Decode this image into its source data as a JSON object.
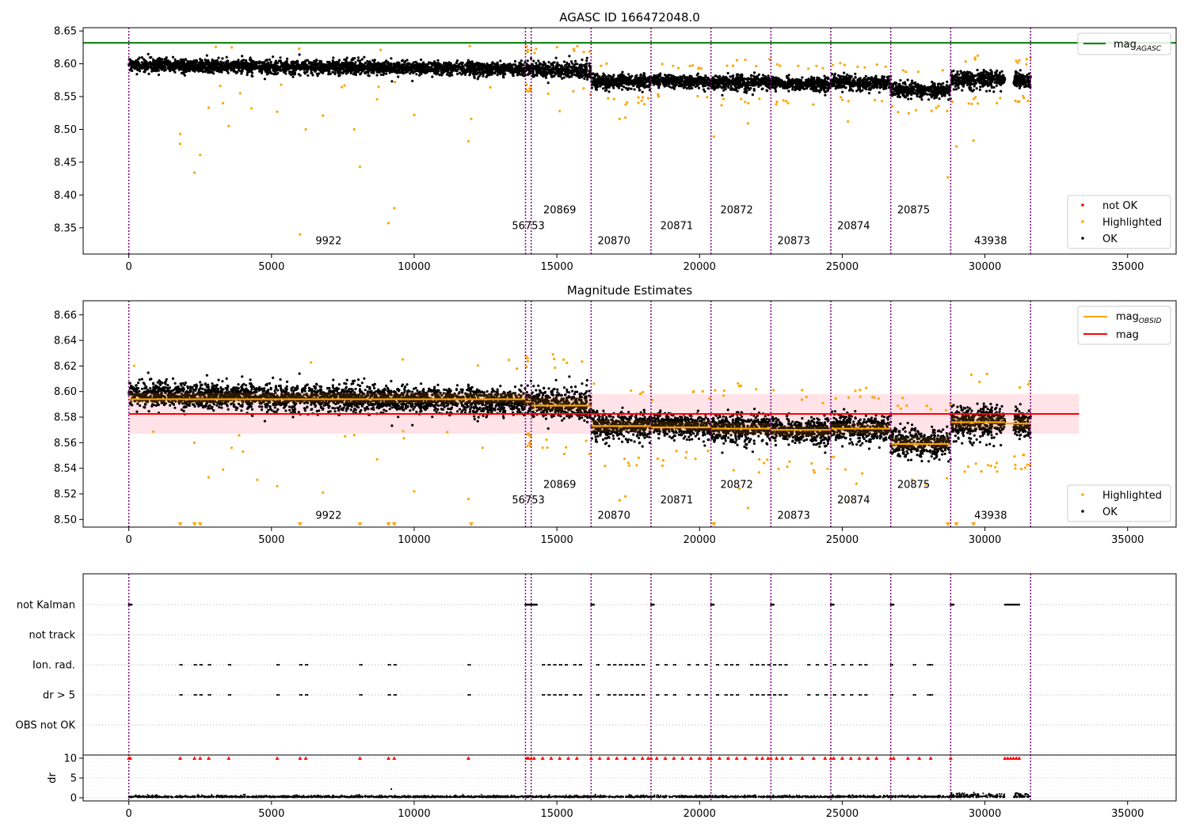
{
  "colors": {
    "ok": "#000000",
    "highlighted": "#ffa500",
    "not_ok": "#ff0000",
    "mag_agasc": "#008000",
    "mag": "#ff0000",
    "mag_obsid": "#ffa500",
    "obs_boundary": "#800080",
    "band": "#ffc0cb"
  },
  "chart_data": [
    {
      "type": "scatter",
      "title": "AGASC ID 166472048.0",
      "xlim": [
        -1600,
        36700
      ],
      "ylim": [
        8.31,
        8.655
      ],
      "xticks": [
        0,
        5000,
        10000,
        15000,
        20000,
        25000,
        30000,
        35000
      ],
      "xtick_labels": [
        "0",
        "5000",
        "10000",
        "15000",
        "20000",
        "25000",
        "30000",
        "35000"
      ],
      "yticks": [
        8.35,
        8.4,
        8.45,
        8.5,
        8.55,
        8.6,
        8.65
      ],
      "ytick_labels": [
        "8.35",
        "8.40",
        "8.45",
        "8.50",
        "8.55",
        "8.60",
        "8.65"
      ],
      "mag_agasc": 8.632,
      "legend_top": {
        "placement": "top-right",
        "entries": [
          {
            "label": "mag",
            "sub": "AGASC",
            "color": "#008000"
          }
        ]
      },
      "legend_bottom": {
        "placement": "lower-right",
        "entries": [
          {
            "label": "not OK",
            "color": "#ff0000"
          },
          {
            "label": "Highlighted",
            "color": "#ffa500"
          },
          {
            "label": "OK",
            "color": "#000000"
          }
        ]
      },
      "obs_labels": [
        {
          "text": "9922",
          "x": 7000,
          "y": 8.325
        },
        {
          "text": "56753",
          "x": 14000,
          "y": 8.348
        },
        {
          "text": "20869",
          "x": 15100,
          "y": 8.372
        },
        {
          "text": "20870",
          "x": 17000,
          "y": 8.325
        },
        {
          "text": "20871",
          "x": 19200,
          "y": 8.348
        },
        {
          "text": "20872",
          "x": 21300,
          "y": 8.372
        },
        {
          "text": "20873",
          "x": 23300,
          "y": 8.325
        },
        {
          "text": "20874",
          "x": 25400,
          "y": 8.348
        },
        {
          "text": "20875",
          "x": 27500,
          "y": 8.372
        },
        {
          "text": "43938",
          "x": 30200,
          "y": 8.325
        }
      ],
      "highlighted_points": [
        [
          1800,
          8.493
        ],
        [
          1800,
          8.478
        ],
        [
          2300,
          8.434
        ],
        [
          2500,
          8.461
        ],
        [
          2800,
          8.533
        ],
        [
          3300,
          8.54
        ],
        [
          3500,
          8.505
        ],
        [
          3900,
          8.555
        ],
        [
          4300,
          8.532
        ],
        [
          5200,
          8.527
        ],
        [
          6000,
          8.34
        ],
        [
          6200,
          8.5
        ],
        [
          6800,
          8.521
        ],
        [
          7900,
          8.5
        ],
        [
          8100,
          8.443
        ],
        [
          8700,
          8.546
        ],
        [
          9100,
          8.357
        ],
        [
          9300,
          8.38
        ],
        [
          10000,
          8.522
        ],
        [
          11900,
          8.482
        ],
        [
          12000,
          8.516
        ],
        [
          15100,
          8.528
        ],
        [
          17200,
          8.516
        ],
        [
          17400,
          8.518
        ],
        [
          20500,
          8.489
        ],
        [
          21700,
          8.509
        ],
        [
          25200,
          8.512
        ],
        [
          28700,
          8.427
        ],
        [
          29000,
          8.474
        ],
        [
          29600,
          8.483
        ]
      ]
    },
    {
      "type": "scatter",
      "title": "Magnitude Estimates",
      "xlim": [
        -1600,
        36700
      ],
      "ylim": [
        8.494,
        8.671
      ],
      "xticks": [
        0,
        5000,
        10000,
        15000,
        20000,
        25000,
        30000,
        35000
      ],
      "xtick_labels": [
        "0",
        "5000",
        "10000",
        "15000",
        "20000",
        "25000",
        "30000",
        "35000"
      ],
      "yticks": [
        8.5,
        8.52,
        8.54,
        8.56,
        8.58,
        8.6,
        8.62,
        8.64,
        8.66
      ],
      "ytick_labels": [
        "8.50",
        "8.52",
        "8.54",
        "8.56",
        "8.58",
        "8.60",
        "8.62",
        "8.64",
        "8.66"
      ],
      "mag": 8.5825,
      "mag_band": [
        8.567,
        8.598
      ],
      "mag_band_x": [
        0,
        33300
      ],
      "mag_obsid_segments": [
        {
          "x": [
            0,
            13900
          ],
          "y": 8.594
        },
        {
          "x": [
            13900,
            14100
          ],
          "y": 8.592
        },
        {
          "x": [
            14100,
            16200
          ],
          "y": 8.589
        },
        {
          "x": [
            16200,
            18300
          ],
          "y": 8.573
        },
        {
          "x": [
            18300,
            20400
          ],
          "y": 8.572
        },
        {
          "x": [
            20400,
            22500
          ],
          "y": 8.571
        },
        {
          "x": [
            22500,
            24600
          ],
          "y": 8.57
        },
        {
          "x": [
            24600,
            26700
          ],
          "y": 8.571
        },
        {
          "x": [
            26700,
            28800
          ],
          "y": 8.559
        },
        {
          "x": [
            28800,
            30700
          ],
          "y": 8.576
        },
        {
          "x": [
            30700,
            31600
          ],
          "y": 8.575
        }
      ],
      "legend_top": {
        "placement": "top-right",
        "entries": [
          {
            "label": "mag",
            "sub": "OBSID",
            "color": "#ffa500"
          },
          {
            "label": "mag",
            "sub": "",
            "color": "#ff0000"
          }
        ]
      },
      "legend_bottom": {
        "placement": "lower-right",
        "entries": [
          {
            "label": "Highlighted",
            "color": "#ffa500"
          },
          {
            "label": "OK",
            "color": "#000000"
          }
        ]
      },
      "obs_labels": [
        {
          "text": "9922",
          "x": 7000,
          "y": 8.5005
        },
        {
          "text": "56753",
          "x": 14000,
          "y": 8.5125
        },
        {
          "text": "20869",
          "x": 15100,
          "y": 8.5245
        },
        {
          "text": "20870",
          "x": 17000,
          "y": 8.5005
        },
        {
          "text": "20871",
          "x": 19200,
          "y": 8.5125
        },
        {
          "text": "20872",
          "x": 21300,
          "y": 8.5245
        },
        {
          "text": "20873",
          "x": 23300,
          "y": 8.5005
        },
        {
          "text": "20874",
          "x": 25400,
          "y": 8.5125
        },
        {
          "text": "20875",
          "x": 27500,
          "y": 8.5245
        },
        {
          "text": "43938",
          "x": 30200,
          "y": 8.5005
        }
      ],
      "highlighted_points": [
        [
          2300,
          8.56
        ],
        [
          2800,
          8.533
        ],
        [
          3300,
          8.539
        ],
        [
          3600,
          8.556
        ],
        [
          4000,
          8.553
        ],
        [
          4500,
          8.531
        ],
        [
          5200,
          8.526
        ],
        [
          6800,
          8.521
        ],
        [
          7900,
          8.566
        ],
        [
          8700,
          8.547
        ],
        [
          10000,
          8.522
        ],
        [
          11900,
          8.516
        ],
        [
          12400,
          8.556
        ],
        [
          14500,
          8.556
        ],
        [
          17200,
          8.515
        ],
        [
          17400,
          8.518
        ],
        [
          18700,
          8.542
        ],
        [
          21700,
          8.509
        ],
        [
          21400,
          8.524
        ],
        [
          25200,
          8.514
        ],
        [
          25500,
          8.528
        ],
        [
          25700,
          8.536
        ]
      ],
      "clipped_x": [
        1800,
        2300,
        2500,
        6000,
        8100,
        9100,
        9300,
        12000,
        20500,
        28700,
        29000,
        29600
      ]
    },
    {
      "type": "scatter",
      "flags": [
        "not Kalman",
        "not track",
        "Ion. rad.",
        "dr > 5",
        "OBS not OK"
      ],
      "dr_ylabel": "dr",
      "dr_yticks": [
        0,
        5,
        10
      ],
      "dr_ytick_labels": [
        "0",
        "5",
        "10"
      ],
      "dr_ylim": [
        -0.8,
        10.8
      ],
      "xlim": [
        -1600,
        36700
      ],
      "xticks": [
        0,
        5000,
        10000,
        15000,
        20000,
        25000,
        30000,
        35000
      ],
      "xtick_labels": [
        "0",
        "5000",
        "10000",
        "15000",
        "20000",
        "25000",
        "30000",
        "35000"
      ],
      "not_kalman_ranges": [
        [
          0,
          100
        ],
        [
          13900,
          14300
        ],
        [
          16200,
          16300
        ],
        [
          18300,
          18400
        ],
        [
          20400,
          20500
        ],
        [
          22500,
          22600
        ],
        [
          24600,
          24700
        ],
        [
          26700,
          26800
        ],
        [
          28800,
          28900
        ],
        [
          30700,
          31200
        ]
      ],
      "not_track_x": [
        26700
      ],
      "ion_rad_x": [
        1800,
        2300,
        2500,
        2800,
        3500,
        5200,
        6000,
        6200,
        8100,
        9100,
        9300,
        11900,
        14500,
        14700,
        14900,
        15100,
        15300,
        15600,
        15800,
        16400,
        16800,
        17000,
        17200,
        17400,
        17600,
        17800,
        18000,
        18500,
        18800,
        19100,
        19600,
        19900,
        20200,
        20600,
        20900,
        21100,
        21300,
        21800,
        22000,
        22200,
        22400,
        22600,
        22800,
        23000,
        23800,
        24100,
        24400,
        24700,
        25000,
        25300,
        25600,
        25800,
        26700,
        27500,
        28000,
        28100
      ],
      "dr5_x": [
        1800,
        2300,
        2500,
        2800,
        3500,
        5200,
        6000,
        6200,
        8100,
        9100,
        9300,
        11900,
        14500,
        14700,
        14900,
        15100,
        15300,
        15600,
        15800,
        16400,
        16800,
        17000,
        17200,
        17400,
        17600,
        17800,
        18000,
        18500,
        18800,
        19100,
        19600,
        19900,
        20200,
        20600,
        20900,
        21100,
        21300,
        21800,
        22000,
        22200,
        22400,
        22600,
        22800,
        23000,
        23800,
        24100,
        24400,
        24700,
        25000,
        25300,
        25600,
        25800,
        26700,
        27500,
        28000,
        28100
      ],
      "dr_clipped_x": [
        0,
        50,
        1800,
        2300,
        2500,
        2800,
        3500,
        5200,
        6000,
        6200,
        8100,
        9100,
        9300,
        11900,
        13950,
        14000,
        14100,
        14200,
        14500,
        14800,
        15100,
        15400,
        15700,
        16200,
        16500,
        16800,
        17100,
        17400,
        17700,
        18000,
        18200,
        18300,
        18500,
        18800,
        19100,
        19400,
        19700,
        20000,
        20300,
        20400,
        20700,
        21000,
        21300,
        21600,
        22000,
        22200,
        22400,
        22500,
        22700,
        22900,
        23200,
        23600,
        24000,
        24400,
        24600,
        24700,
        25000,
        25300,
        25600,
        25900,
        26200,
        26700,
        26800,
        27300,
        27700,
        28100,
        28800,
        30700,
        30800,
        30900,
        31000,
        31100,
        31200
      ]
    }
  ],
  "obs_boundaries": [
    0,
    13900,
    14100,
    16200,
    18300,
    20400,
    22500,
    24600,
    26700,
    28800,
    31600
  ],
  "segments": [
    {
      "x": [
        0,
        13900
      ],
      "center": 8.595,
      "trend": -0.006,
      "spread": 0.009
    },
    {
      "x": [
        13900,
        14100
      ],
      "center": 8.593,
      "trend": 0.0,
      "spread": 0.01
    },
    {
      "x": [
        14100,
        16200
      ],
      "center": 8.59,
      "trend": -0.002,
      "spread": 0.011
    },
    {
      "x": [
        16200,
        18300
      ],
      "center": 8.573,
      "trend": 0.002,
      "spread": 0.01
    },
    {
      "x": [
        18300,
        20400
      ],
      "center": 8.573,
      "trend": -0.004,
      "spread": 0.008
    },
    {
      "x": [
        20400,
        22500
      ],
      "center": 8.571,
      "trend": 0.0,
      "spread": 0.01
    },
    {
      "x": [
        22500,
        24600
      ],
      "center": 8.569,
      "trend": -0.002,
      "spread": 0.009
    },
    {
      "x": [
        24600,
        26700
      ],
      "center": 8.571,
      "trend": -0.002,
      "spread": 0.009
    },
    {
      "x": [
        26700,
        28800
      ],
      "center": 8.56,
      "trend": -0.002,
      "spread": 0.01
    },
    {
      "x": [
        28800,
        30700
      ],
      "center": 8.576,
      "trend": 0.0,
      "spread": 0.011
    },
    {
      "x": [
        31000,
        31600
      ],
      "center": 8.575,
      "trend": 0.0,
      "spread": 0.01
    }
  ]
}
